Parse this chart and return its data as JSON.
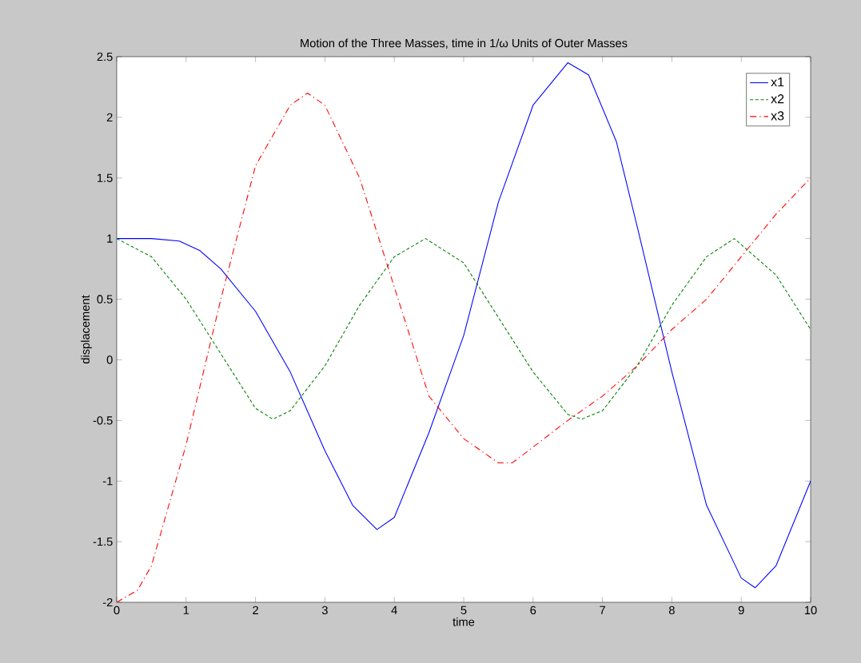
{
  "chart_data": {
    "type": "line",
    "title": "Motion of the Three Masses, time in 1/ω Units of Outer Masses",
    "xlabel": "time",
    "ylabel": "displacement",
    "xlim": [
      0,
      10
    ],
    "ylim": [
      -2,
      2.5
    ],
    "xticks": [
      0,
      1,
      2,
      3,
      4,
      5,
      6,
      7,
      8,
      9,
      10
    ],
    "yticks": [
      -2,
      -1.5,
      -1,
      -0.5,
      0,
      0.5,
      1,
      1.5,
      2,
      2.5
    ],
    "grid": false,
    "legend": "top right",
    "marker": "none",
    "series": [
      {
        "name": "x1",
        "color": "#0000ff",
        "line_style": "solid",
        "x": [
          0,
          0.5,
          0.9,
          1.2,
          1.5,
          2,
          2.5,
          3,
          3.4,
          3.75,
          4,
          4.5,
          5,
          5.5,
          6,
          6.5,
          6.8,
          7.2,
          7.5,
          8,
          8.5,
          9,
          9.2,
          9.5,
          10
        ],
        "values": [
          1,
          1,
          0.98,
          0.9,
          0.75,
          0.4,
          -0.1,
          -0.75,
          -1.2,
          -1.4,
          -1.3,
          -0.6,
          0.2,
          1.3,
          2.1,
          2.45,
          2.35,
          1.8,
          1.1,
          -0.1,
          -1.2,
          -1.8,
          -1.88,
          -1.7,
          -1.0
        ]
      },
      {
        "name": "x2",
        "color": "#008000",
        "line_style": "dashed",
        "x": [
          0,
          0.5,
          1,
          1.5,
          2,
          2.25,
          2.5,
          3,
          3.5,
          4,
          4.45,
          5,
          5.5,
          6,
          6.5,
          6.7,
          7,
          7.5,
          8,
          8.5,
          8.9,
          9.5,
          10
        ],
        "values": [
          1,
          0.85,
          0.5,
          0.05,
          -0.4,
          -0.49,
          -0.42,
          -0.05,
          0.45,
          0.85,
          1,
          0.8,
          0.35,
          -0.1,
          -0.45,
          -0.49,
          -0.42,
          -0.05,
          0.45,
          0.85,
          1,
          0.7,
          0.25
        ]
      },
      {
        "name": "x3",
        "color": "#ff0000",
        "line_style": "dashdot",
        "x": [
          0,
          0.3,
          0.5,
          1,
          1.5,
          2,
          2.5,
          2.75,
          3,
          3.5,
          4,
          4.5,
          5,
          5.5,
          5.7,
          6,
          6.5,
          7,
          7.5,
          8,
          8.5,
          9,
          9.5,
          10
        ],
        "values": [
          -2,
          -1.9,
          -1.7,
          -0.7,
          0.5,
          1.6,
          2.1,
          2.2,
          2.1,
          1.5,
          0.6,
          -0.3,
          -0.65,
          -0.85,
          -0.85,
          -0.72,
          -0.5,
          -0.3,
          -0.05,
          0.25,
          0.5,
          0.85,
          1.2,
          1.5
        ]
      }
    ]
  }
}
